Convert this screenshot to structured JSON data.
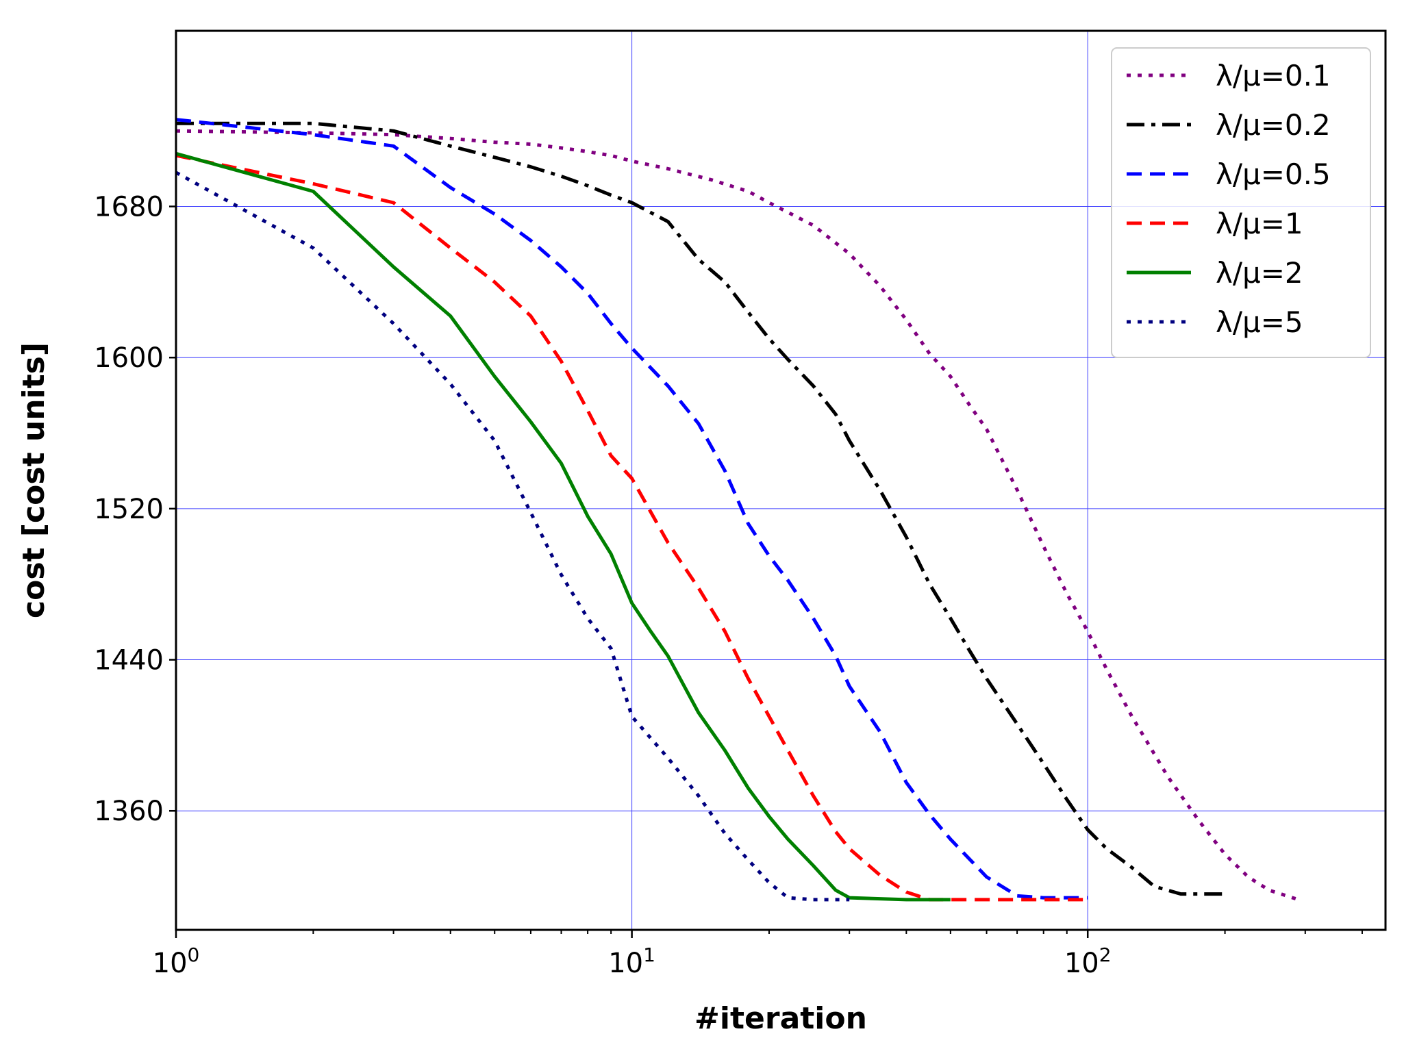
{
  "chart_data": {
    "type": "line",
    "title": "",
    "xlabel": "#iteration",
    "ylabel": "cost [cost units]",
    "xscale": "log",
    "xlim": [
      1,
      450
    ],
    "ylim": [
      1297,
      1773
    ],
    "x_ticks": [
      {
        "value": 1,
        "base": "10",
        "exp": "0"
      },
      {
        "value": 10,
        "base": "10",
        "exp": "1"
      },
      {
        "value": 100,
        "base": "10",
        "exp": "2"
      }
    ],
    "y_ticks": [
      1360,
      1440,
      1520,
      1600,
      1680
    ],
    "grid": true,
    "grid_color": "#4040ff",
    "legend_position": "top-right",
    "series": [
      {
        "name": "λ/μ=0.1",
        "color": "#800080",
        "style": "dotted",
        "points": [
          [
            1,
            1720
          ],
          [
            2,
            1719
          ],
          [
            3,
            1718
          ],
          [
            4,
            1716
          ],
          [
            5,
            1714
          ],
          [
            6,
            1713
          ],
          [
            7,
            1711
          ],
          [
            8,
            1709
          ],
          [
            9,
            1707
          ],
          [
            10,
            1704
          ],
          [
            12,
            1700
          ],
          [
            15,
            1694
          ],
          [
            18,
            1688
          ],
          [
            20,
            1682
          ],
          [
            25,
            1670
          ],
          [
            30,
            1655
          ],
          [
            35,
            1638
          ],
          [
            40,
            1620
          ],
          [
            45,
            1602
          ],
          [
            50,
            1590
          ],
          [
            55,
            1575
          ],
          [
            60,
            1562
          ],
          [
            70,
            1530
          ],
          [
            80,
            1500
          ],
          [
            90,
            1475
          ],
          [
            100,
            1455
          ],
          [
            110,
            1435
          ],
          [
            125,
            1410
          ],
          [
            150,
            1378
          ],
          [
            175,
            1355
          ],
          [
            200,
            1337
          ],
          [
            225,
            1325
          ],
          [
            250,
            1318
          ],
          [
            290,
            1313
          ]
        ]
      },
      {
        "name": "λ/μ=0.2",
        "color": "#000000",
        "style": "dashdot",
        "points": [
          [
            1,
            1724
          ],
          [
            2,
            1724
          ],
          [
            3,
            1720
          ],
          [
            4,
            1712
          ],
          [
            5,
            1706
          ],
          [
            6,
            1701
          ],
          [
            7,
            1696
          ],
          [
            8,
            1691
          ],
          [
            9,
            1686
          ],
          [
            10,
            1682
          ],
          [
            12,
            1672
          ],
          [
            14,
            1652
          ],
          [
            16,
            1640
          ],
          [
            18,
            1624
          ],
          [
            20,
            1610
          ],
          [
            22,
            1599
          ],
          [
            25,
            1585
          ],
          [
            28,
            1570
          ],
          [
            30,
            1556
          ],
          [
            35,
            1530
          ],
          [
            40,
            1505
          ],
          [
            45,
            1480
          ],
          [
            50,
            1462
          ],
          [
            55,
            1445
          ],
          [
            60,
            1430
          ],
          [
            70,
            1406
          ],
          [
            80,
            1385
          ],
          [
            90,
            1366
          ],
          [
            100,
            1350
          ],
          [
            110,
            1340
          ],
          [
            125,
            1330
          ],
          [
            140,
            1320
          ],
          [
            160,
            1316
          ],
          [
            200,
            1316
          ]
        ]
      },
      {
        "name": "λ/μ=0.5",
        "color": "#0000ff",
        "style": "dashed",
        "points": [
          [
            1,
            1726
          ],
          [
            2,
            1718
          ],
          [
            3,
            1712
          ],
          [
            4,
            1690
          ],
          [
            5,
            1676
          ],
          [
            6,
            1662
          ],
          [
            7,
            1648
          ],
          [
            8,
            1634
          ],
          [
            9,
            1618
          ],
          [
            10,
            1605
          ],
          [
            12,
            1585
          ],
          [
            14,
            1565
          ],
          [
            16,
            1540
          ],
          [
            18,
            1512
          ],
          [
            20,
            1495
          ],
          [
            22,
            1482
          ],
          [
            25,
            1462
          ],
          [
            28,
            1442
          ],
          [
            30,
            1426
          ],
          [
            35,
            1402
          ],
          [
            40,
            1375
          ],
          [
            45,
            1358
          ],
          [
            50,
            1345
          ],
          [
            60,
            1325
          ],
          [
            70,
            1315
          ],
          [
            80,
            1314
          ],
          [
            100,
            1314
          ]
        ]
      },
      {
        "name": "λ/μ=1",
        "color": "#ff0000",
        "style": "dashed",
        "points": [
          [
            1,
            1707
          ],
          [
            2,
            1692
          ],
          [
            3,
            1682
          ],
          [
            4,
            1658
          ],
          [
            5,
            1640
          ],
          [
            6,
            1622
          ],
          [
            7,
            1598
          ],
          [
            8,
            1572
          ],
          [
            9,
            1548
          ],
          [
            10,
            1536
          ],
          [
            12,
            1502
          ],
          [
            14,
            1478
          ],
          [
            16,
            1455
          ],
          [
            18,
            1430
          ],
          [
            20,
            1410
          ],
          [
            22,
            1392
          ],
          [
            25,
            1368
          ],
          [
            28,
            1349
          ],
          [
            30,
            1340
          ],
          [
            35,
            1326
          ],
          [
            40,
            1317
          ],
          [
            45,
            1313
          ],
          [
            50,
            1313
          ],
          [
            100,
            1313
          ]
        ]
      },
      {
        "name": "λ/μ=2",
        "color": "#008000",
        "style": "solid",
        "points": [
          [
            1,
            1708
          ],
          [
            2,
            1688
          ],
          [
            3,
            1648
          ],
          [
            4,
            1622
          ],
          [
            5,
            1590
          ],
          [
            6,
            1566
          ],
          [
            7,
            1544
          ],
          [
            8,
            1516
          ],
          [
            9,
            1496
          ],
          [
            10,
            1470
          ],
          [
            11,
            1455
          ],
          [
            12,
            1442
          ],
          [
            14,
            1412
          ],
          [
            16,
            1392
          ],
          [
            18,
            1372
          ],
          [
            20,
            1357
          ],
          [
            22,
            1345
          ],
          [
            25,
            1331
          ],
          [
            28,
            1318
          ],
          [
            30,
            1314
          ],
          [
            40,
            1313
          ],
          [
            50,
            1313
          ]
        ]
      },
      {
        "name": "λ/μ=5",
        "color": "#000080",
        "style": "dotted",
        "points": [
          [
            1,
            1698
          ],
          [
            2,
            1658
          ],
          [
            3,
            1618
          ],
          [
            4,
            1586
          ],
          [
            5,
            1556
          ],
          [
            6,
            1518
          ],
          [
            7,
            1485
          ],
          [
            8,
            1462
          ],
          [
            9,
            1446
          ],
          [
            10,
            1410
          ],
          [
            12,
            1388
          ],
          [
            14,
            1368
          ],
          [
            16,
            1348
          ],
          [
            18,
            1334
          ],
          [
            20,
            1322
          ],
          [
            22,
            1314
          ],
          [
            25,
            1313
          ],
          [
            30,
            1313
          ]
        ]
      }
    ]
  }
}
